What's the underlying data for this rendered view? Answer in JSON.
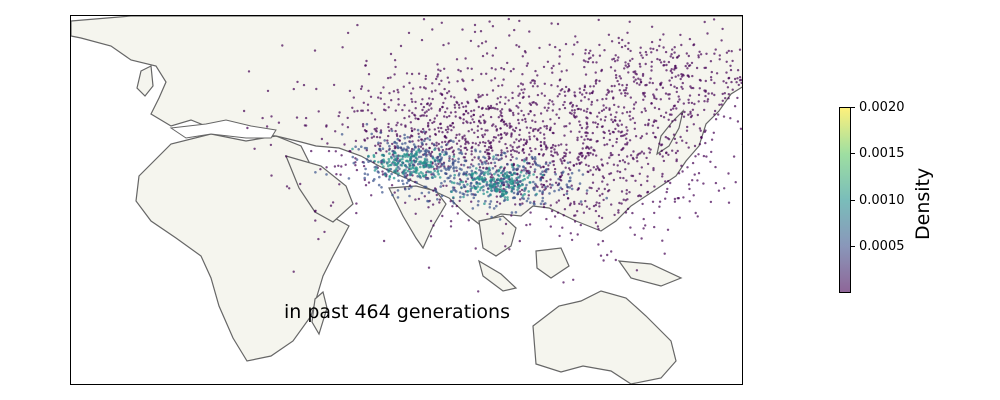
{
  "map": {
    "caption": "in past 464 generations",
    "land_color": "#f5f5ee",
    "coast_color": "#666666",
    "point_colormap": "viridis",
    "point_alpha": 0.7
  },
  "colorbar": {
    "label": "Density",
    "ticks": [
      "0.0005",
      "0.0010",
      "0.0015",
      "0.0020"
    ],
    "range": [
      0.0,
      0.002
    ],
    "colormap": "viridis"
  }
}
